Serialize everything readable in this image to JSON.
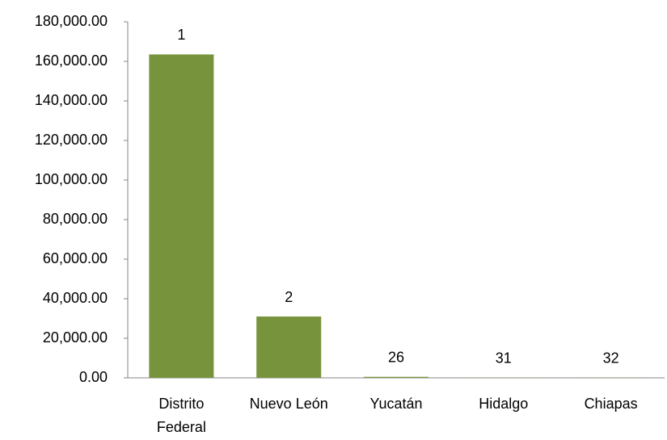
{
  "chart_data": {
    "type": "bar",
    "categories": [
      "Distrito Federal",
      "Nuevo León",
      "Yucatán",
      "Hidalgo",
      "Chiapas"
    ],
    "values": [
      163500,
      31000,
      500,
      100,
      50
    ],
    "ranks": [
      1,
      2,
      26,
      31,
      32
    ],
    "color": "#77933c",
    "ylim": [
      0,
      180000
    ],
    "yticks": [
      {
        "value": 0,
        "label": "0.00"
      },
      {
        "value": 20000,
        "label": "20,000.00"
      },
      {
        "value": 40000,
        "label": "40,000.00"
      },
      {
        "value": 60000,
        "label": "60,000.00"
      },
      {
        "value": 80000,
        "label": "80,000.00"
      },
      {
        "value": 100000,
        "label": "100,000.00"
      },
      {
        "value": 120000,
        "label": "120,000.00"
      },
      {
        "value": 140000,
        "label": "140,000.00"
      },
      {
        "value": 160000,
        "label": "160,000.00"
      },
      {
        "value": 180000,
        "label": "180,000.00"
      }
    ],
    "grid": false
  }
}
